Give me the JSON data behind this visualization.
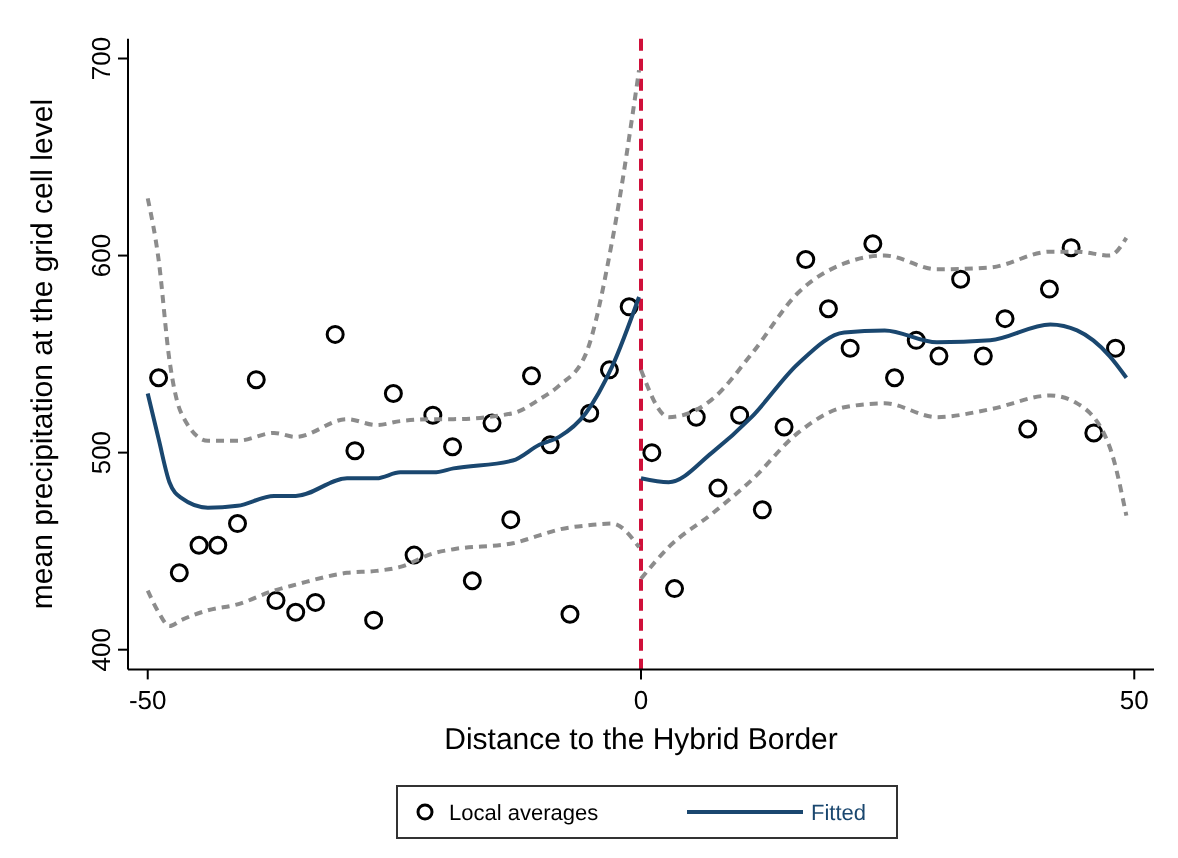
{
  "chart_data": {
    "type": "scatter",
    "xlabel": "Distance to the Hybrid Border",
    "ylabel": "mean precipitation at the grid cell level",
    "xlim": [
      -52,
      52
    ],
    "ylim": [
      390,
      710
    ],
    "xticks": [
      -50,
      0,
      50
    ],
    "yticks": [
      400,
      500,
      600,
      700
    ],
    "grid": false,
    "legend": "bottom",
    "series": [
      {
        "name": "Local averages",
        "marker": "circle",
        "color": "#000000",
        "x": [
          -48.9,
          -46.8,
          -44.8,
          -42.9,
          -40.9,
          -39.0,
          -37.0,
          -35.0,
          -33.0,
          -31.0,
          -29.0,
          -27.1,
          -25.1,
          -23.0,
          -21.1,
          -19.1,
          -17.1,
          -15.1,
          -13.2,
          -11.1,
          -9.2,
          -7.2,
          -5.2,
          -3.2,
          -1.2,
          1.1,
          3.4,
          5.6,
          7.8,
          10.0,
          12.3,
          14.5,
          16.7,
          19.0,
          21.2,
          23.5,
          25.7,
          27.9,
          30.2,
          32.4,
          34.7,
          36.9,
          39.2,
          41.4,
          43.6,
          45.9,
          48.1
        ],
        "values": [
          538,
          439,
          453,
          453,
          464,
          537,
          425,
          419,
          424,
          560,
          501,
          415,
          530,
          448,
          519,
          503,
          435,
          515,
          466,
          539,
          504,
          418,
          520,
          542,
          574,
          500,
          431,
          518,
          482,
          519,
          471,
          513,
          598,
          573,
          553,
          606,
          538,
          557,
          549,
          588,
          549,
          568,
          512,
          583,
          604,
          510,
          553
        ]
      },
      {
        "name": "Fitted",
        "type": "line",
        "marker": "none",
        "color": "#1a476f",
        "x": [
          -50,
          -48.9,
          -47.8,
          -46.6,
          -43.9,
          -40.9,
          -37.2,
          -35,
          -29.8,
          -26.8,
          -24.4,
          -21,
          -19,
          -13,
          -10.3,
          -8.3,
          -5.6,
          -2.9,
          -0.2,
          -0.1,
          0,
          2.8,
          7.2,
          11.2,
          15.9,
          20.6,
          24.7,
          30,
          35.4,
          41.5,
          44.2,
          47.5,
          49.2
        ],
        "values": [
          530,
          507,
          485,
          477,
          472,
          473,
          478,
          478,
          487,
          487,
          490,
          490,
          492,
          496,
          504,
          508,
          520,
          544,
          579,
          null,
          487,
          485,
          500,
          518,
          545,
          561,
          562,
          556,
          557,
          565,
          562,
          549,
          538
        ]
      },
      {
        "type": "line",
        "line_style": "dashed",
        "color": "#8c8c8c",
        "x": [
          -50,
          -48.9,
          -47.8,
          -46.6,
          -43.9,
          -40.9,
          -37.2,
          -35,
          -29.8,
          -26.8,
          -24.4,
          -21,
          -19,
          -13,
          -10.3,
          -8.3,
          -5.6,
          -2.9,
          -0.2
        ],
        "values": [
          430,
          419,
          412,
          415,
          420,
          423,
          430,
          433,
          439,
          440,
          442,
          449,
          451,
          454,
          458,
          461,
          463,
          464,
          452
        ]
      },
      {
        "type": "line",
        "line_style": "dashed",
        "color": "#8c8c8c",
        "x": [
          -50,
          -48.9,
          -47.8,
          -46.6,
          -43.9,
          -40.9,
          -37.2,
          -35,
          -29.8,
          -26.8,
          -24.4,
          -21,
          -19,
          -13,
          -10.3,
          -8.3,
          -5.6,
          -2.9,
          -0.2
        ],
        "values": [
          629,
          598,
          547,
          520,
          506,
          506,
          510,
          508,
          517,
          514,
          516,
          517,
          517,
          520,
          527,
          534,
          550,
          608,
          694
        ]
      },
      {
        "type": "line",
        "line_style": "dashed",
        "color": "#8c8c8c",
        "x": [
          0,
          2.8,
          7.2,
          11.2,
          15.9,
          20.6,
          24.7,
          30,
          35.4,
          41.5,
          44.2,
          47.5,
          49.2
        ],
        "values": [
          436,
          452,
          469,
          486,
          510,
          523,
          525,
          518,
          522,
          529,
          525,
          503,
          468
        ]
      },
      {
        "type": "line",
        "line_style": "dashed",
        "color": "#8c8c8c",
        "x": [
          0,
          2.8,
          7.2,
          11.2,
          15.9,
          20.6,
          24.7,
          30,
          35.4,
          41.5,
          44.2,
          47.5,
          49.2
        ],
        "values": [
          542,
          518,
          527,
          550,
          581,
          596,
          600,
          593,
          594,
          602,
          602,
          600,
          609
        ]
      }
    ],
    "ref_lines": [
      {
        "axis": "x",
        "value": 0,
        "color": "#d0103a",
        "line_style": "dashed"
      }
    ]
  }
}
